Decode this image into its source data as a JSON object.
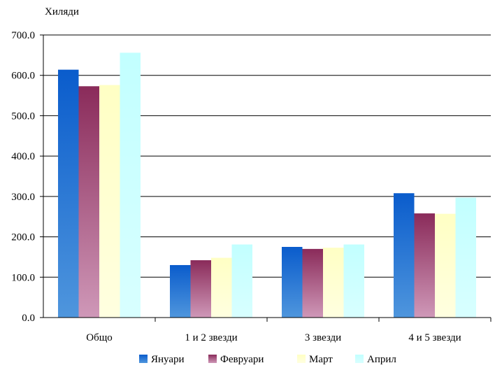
{
  "chart_data": {
    "type": "bar",
    "unit_label": "Хиляди",
    "categories": [
      "Общо",
      "1 и 2 звезди",
      "3 звезди",
      "4 и 5 звезди"
    ],
    "series": [
      {
        "name": "Януари",
        "values": [
          614,
          130,
          175,
          308
        ],
        "color_top": "#0a5ccc",
        "color_bottom": "#4f96dd"
      },
      {
        "name": "Февруари",
        "values": [
          573,
          142,
          170,
          258
        ],
        "color_top": "#8a2b5a",
        "color_bottom": "#cf98b8"
      },
      {
        "name": "Март",
        "values": [
          576,
          148,
          173,
          257
        ],
        "color_top": "#ffffc4",
        "color_bottom": "#ffffe0"
      },
      {
        "name": "Април",
        "values": [
          656,
          181,
          181,
          297
        ],
        "color_top": "#c2ffff",
        "color_bottom": "#d8ffff"
      }
    ],
    "ylim": [
      0,
      700
    ],
    "yticks": [
      "0.0",
      "100.0",
      "200.0",
      "300.0",
      "400.0",
      "500.0",
      "600.0",
      "700.0"
    ],
    "grid": true,
    "legend": "bottom"
  }
}
